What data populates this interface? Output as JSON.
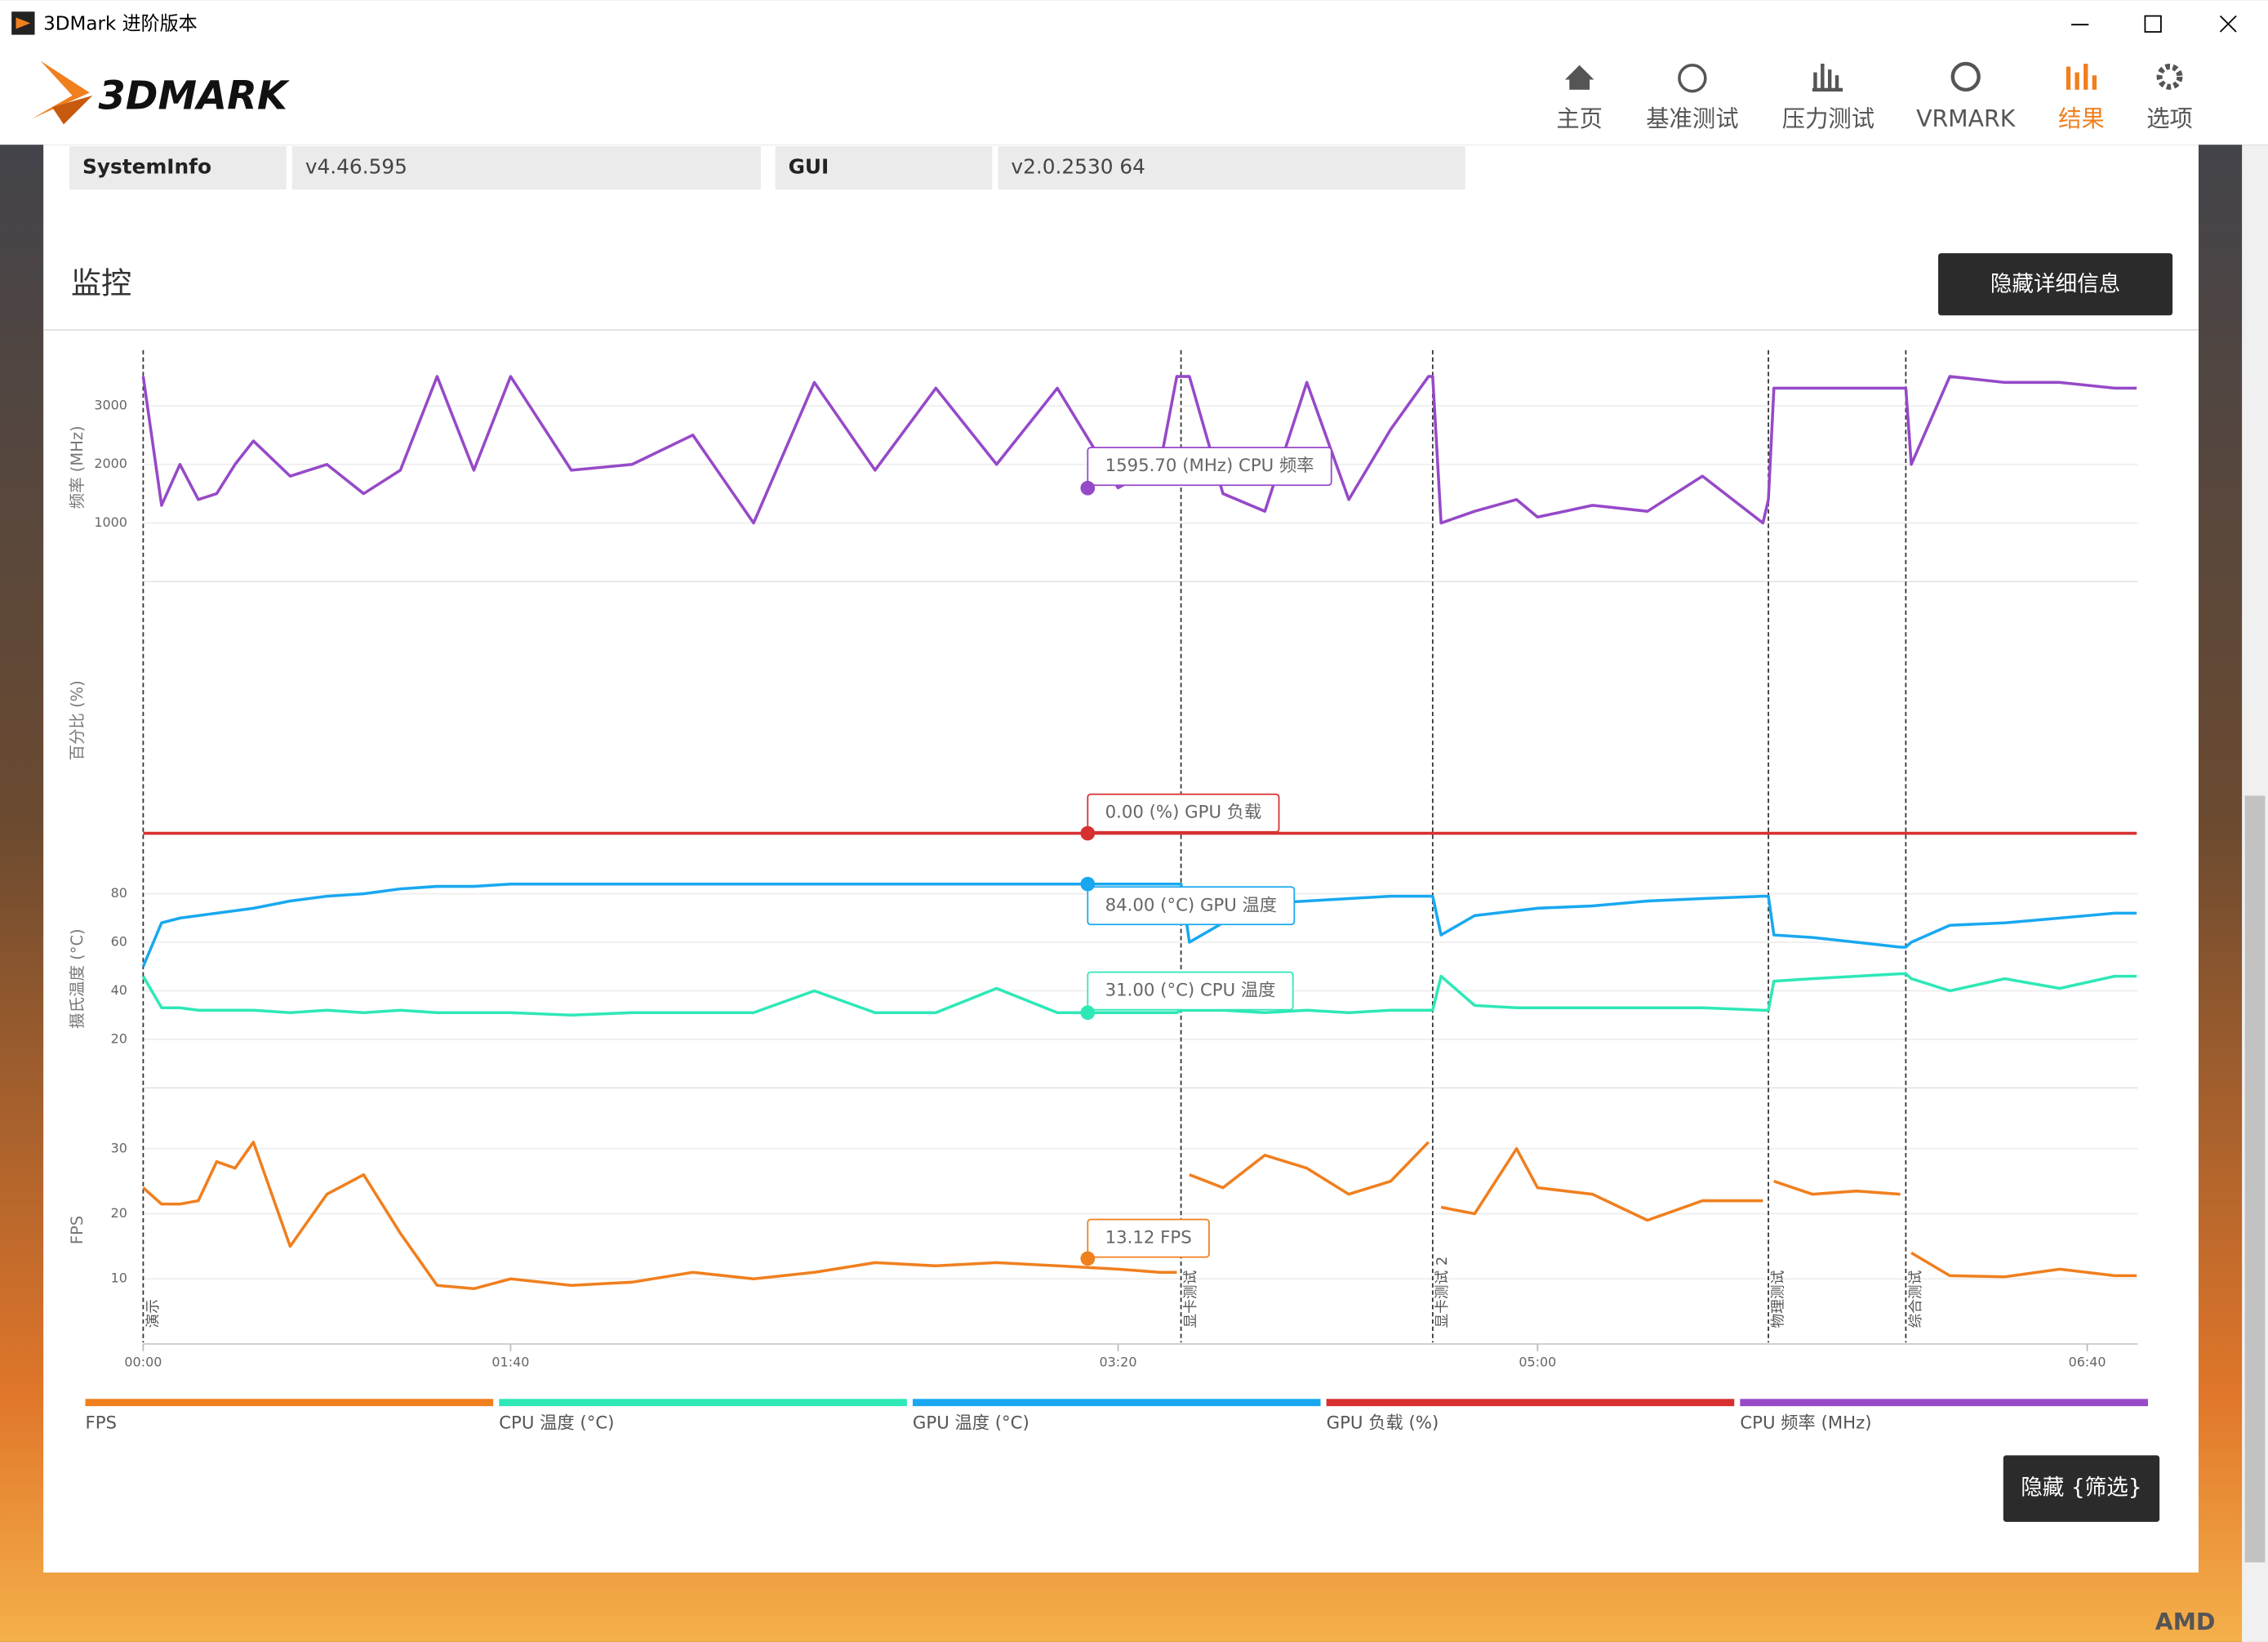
{
  "window": {
    "title": "3DMark 进阶版本"
  },
  "header": {
    "logo": "3DMARK",
    "nav": [
      "主页",
      "基准测试",
      "压力测试",
      "VRMARK",
      "结果",
      "选项"
    ],
    "active": 4
  },
  "info": [
    [
      "SystemInfo",
      "v4.46.595"
    ],
    [
      "GUI",
      "v2.0.2530 64"
    ]
  ],
  "section_title": "监控",
  "buttons": {
    "details": "隐藏详细信息",
    "filter": "隐藏 {筛选}"
  },
  "watermark": "AMD",
  "chart_data": {
    "type": "line",
    "x": [
      0,
      5,
      10,
      15,
      20,
      25,
      30,
      40,
      50,
      60,
      70,
      80,
      90,
      100,
      110,
      120,
      130,
      140,
      150,
      160,
      170,
      180,
      190,
      200,
      210,
      214,
      215,
      217,
      225,
      235,
      245,
      255,
      265,
      274,
      275,
      277,
      285,
      295,
      300,
      310,
      320,
      330,
      341,
      342,
      343,
      350,
      358,
      366,
      367,
      368,
      375,
      385,
      395,
      405,
      409
    ],
    "xlim": [
      0,
      409
    ],
    "xticks": [
      {
        "value": 0,
        "label": "00:00"
      },
      {
        "value": 100,
        "label": "01:40"
      },
      {
        "value": 200,
        "label": "03:20"
      },
      {
        "value": 300,
        "label": "05:00"
      },
      {
        "value": 400,
        "label": "06:40"
      }
    ],
    "panels": [
      {
        "ylabel": "频率 (MHz)",
        "ylim": [
          0,
          3900
        ],
        "yticks": [
          1000,
          2000,
          3000
        ]
      },
      {
        "ylabel": "百分比 (%)",
        "ylim": [
          0,
          100
        ]
      },
      {
        "ylabel": "摄氏温度 (°C)",
        "ylim": [
          0,
          90
        ],
        "yticks": [
          20,
          40,
          60,
          80
        ]
      },
      {
        "ylabel": "FPS",
        "ylim": [
          0,
          35
        ],
        "yticks": [
          10,
          20,
          30
        ]
      }
    ],
    "series": [
      {
        "name": "FPS",
        "color": "#f07f1e",
        "panel": 3,
        "values": [
          24,
          21.5,
          21.5,
          22,
          28,
          27,
          31,
          15,
          23,
          26,
          17,
          9,
          8.5,
          10,
          9,
          9.5,
          11,
          10,
          11,
          12.5,
          12,
          12.5,
          12,
          11.5,
          11,
          11,
          null,
          26,
          24,
          29,
          27,
          23,
          25,
          31,
          null,
          21,
          20,
          30,
          24,
          23,
          19,
          22,
          22,
          null,
          25,
          23,
          23.5,
          23,
          null,
          14,
          10.5,
          10.3,
          11.5,
          10.5,
          10.5
        ]
      },
      {
        "name": "CPU 温度 (°C)",
        "color": "#2ee8b6",
        "panel": 2,
        "values": [
          46,
          33,
          33,
          32,
          32,
          32,
          32,
          31,
          32,
          31,
          32,
          31,
          31,
          31,
          30,
          31,
          31,
          31,
          40,
          31,
          31,
          41,
          31,
          31,
          31,
          31,
          32,
          32,
          32,
          31,
          32,
          31,
          32,
          32,
          32,
          46,
          34,
          33,
          33,
          33,
          33,
          33,
          32,
          32,
          44,
          45,
          46,
          47,
          47,
          45,
          40,
          45,
          41,
          46,
          46
        ]
      },
      {
        "name": "GPU 温度 (°C)",
        "color": "#19a8f0",
        "panel": 2,
        "values": [
          50,
          68,
          70,
          71,
          72,
          73,
          74,
          77,
          79,
          80,
          82,
          83,
          83,
          84,
          84,
          84,
          84,
          84,
          84,
          84,
          84,
          84,
          84,
          84,
          84,
          84,
          84,
          60,
          68,
          76,
          77,
          78,
          79,
          79,
          79,
          63,
          71,
          73,
          74,
          75,
          77,
          78,
          79,
          79,
          63,
          62,
          60,
          58,
          58,
          60,
          67,
          68,
          70,
          72,
          72
        ]
      },
      {
        "name": "GPU 负载 (%)",
        "color": "#d63031",
        "panel": 1,
        "values": [
          0,
          0,
          0,
          0,
          0,
          0,
          0,
          0,
          0,
          0,
          0,
          0,
          0,
          0,
          0,
          0,
          0,
          0,
          0,
          0,
          0,
          0,
          0,
          0,
          0,
          0,
          0,
          0,
          0,
          0,
          0,
          0,
          0,
          0,
          0,
          0,
          0,
          0,
          0,
          0,
          0,
          0,
          0,
          0,
          0,
          0,
          0,
          0,
          0,
          0,
          0,
          0,
          0,
          0,
          0
        ]
      },
      {
        "name": "CPU 频率 (MHz)",
        "color": "#9649c8",
        "panel": 0,
        "values": [
          3500,
          1300,
          2000,
          1400,
          1500,
          2000,
          2400,
          1800,
          2000,
          1500,
          1900,
          3500,
          1900,
          3500,
          1900,
          2000,
          2500,
          1000,
          3400,
          1900,
          3300,
          2000,
          3300,
          1600,
          2000,
          3500,
          3500,
          3500,
          1500,
          1200,
          3400,
          1400,
          2600,
          3500,
          3500,
          1000,
          1200,
          1400,
          1100,
          1300,
          1200,
          1800,
          1000,
          1400,
          3300,
          3300,
          3300,
          3300,
          3300,
          2000,
          3500,
          3400,
          3400,
          3300,
          3300
        ]
      }
    ],
    "markers": [
      {
        "x": 0,
        "label": "演示"
      },
      {
        "x": 215,
        "label": "显卡测试"
      },
      {
        "x": 275,
        "label": "显卡测试 2"
      },
      {
        "x": 342,
        "label": "物理测试"
      },
      {
        "x": 367,
        "label": "综合测试"
      }
    ],
    "cursor": {
      "x": 195,
      "readouts": [
        {
          "series": 4,
          "value": 1595.7,
          "label": "1595.70 (MHz) CPU 频率"
        },
        {
          "series": 3,
          "value": 0,
          "label": "0.00 (%) GPU 负载"
        },
        {
          "series": 2,
          "value": 84,
          "label": "84.00 (°C) GPU 温度"
        },
        {
          "series": 1,
          "value": 31,
          "label": "31.00 (°C) CPU 温度"
        },
        {
          "series": 0,
          "value": 13.12,
          "label": "13.12 FPS"
        }
      ]
    }
  }
}
